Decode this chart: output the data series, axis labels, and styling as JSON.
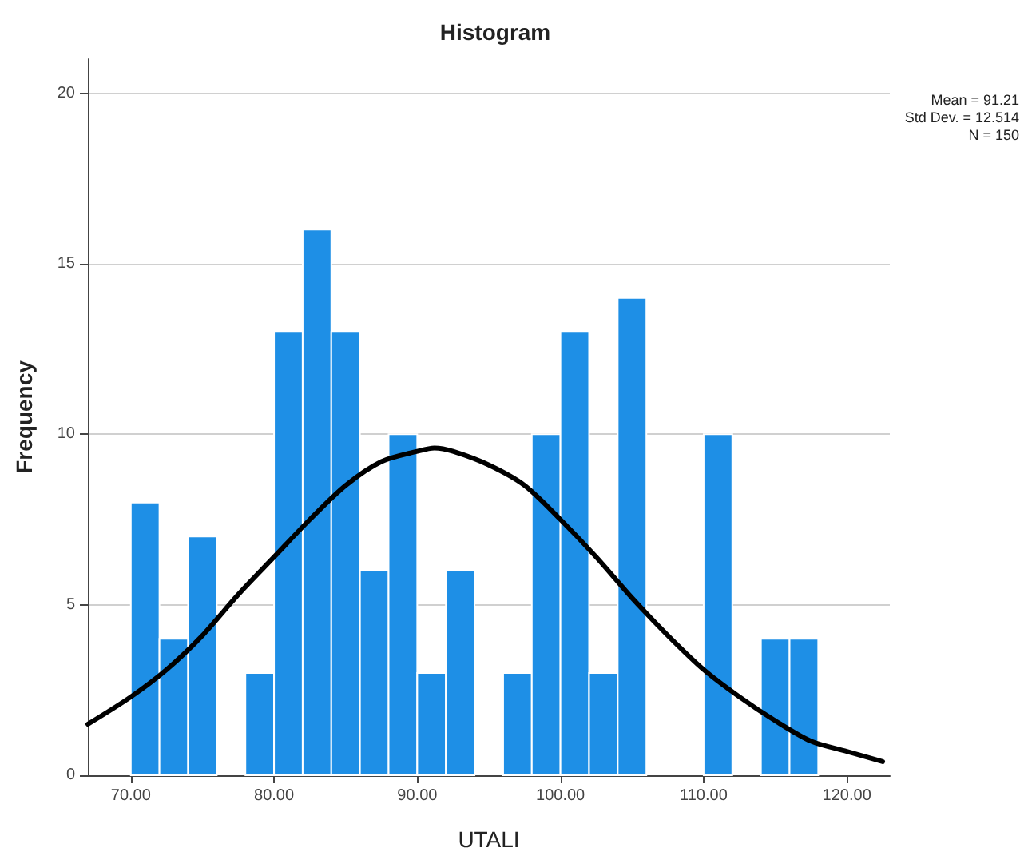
{
  "chart_data": {
    "type": "histogram",
    "title": "Histogram",
    "xlabel": "UTALI",
    "ylabel": "Frequency",
    "bins": [
      70,
      72,
      74,
      76,
      78,
      80,
      82,
      84,
      86,
      88,
      90,
      92,
      94,
      96,
      98,
      100,
      102,
      104,
      106,
      108,
      110,
      112,
      114,
      116,
      118
    ],
    "values": [
      8,
      4,
      7,
      0,
      3,
      13,
      16,
      13,
      6,
      10,
      3,
      6,
      0,
      3,
      10,
      13,
      3,
      14,
      0,
      0,
      10,
      0,
      4,
      4
    ],
    "color": "#1e8fe6",
    "series": [
      {
        "type": "line",
        "color": "#000000",
        "x": [
          67,
          70,
          72.5,
          75,
          77.5,
          80,
          82.5,
          85,
          87.5,
          90,
          91.2,
          92.5,
          95,
          97.5,
          100,
          102.5,
          105,
          107.5,
          110,
          112.5,
          115,
          117.5,
          120,
          122.5
        ],
        "values": [
          1.5,
          2.3,
          3.1,
          4.1,
          5.3,
          6.4,
          7.5,
          8.5,
          9.2,
          9.5,
          9.6,
          9.5,
          9.1,
          8.5,
          7.5,
          6.4,
          5.2,
          4.1,
          3.1,
          2.3,
          1.6,
          1.0,
          0.7,
          0.4
        ]
      }
    ],
    "xlim": [
      67,
      123
    ],
    "xticks": [
      {
        "value": 70,
        "label": "70.00"
      },
      {
        "value": 80,
        "label": "80.00"
      },
      {
        "value": 90,
        "label": "90.00"
      },
      {
        "value": 100,
        "label": "100.00"
      },
      {
        "value": 110,
        "label": "110.00"
      },
      {
        "value": 120,
        "label": "120.00"
      }
    ],
    "ylim": [
      0,
      21
    ],
    "yticks": [
      0,
      5,
      10,
      15,
      20
    ],
    "grid": "y",
    "annotations": [
      "Mean = 91.21",
      "Std Dev. = 12.514",
      "N = 150"
    ]
  }
}
